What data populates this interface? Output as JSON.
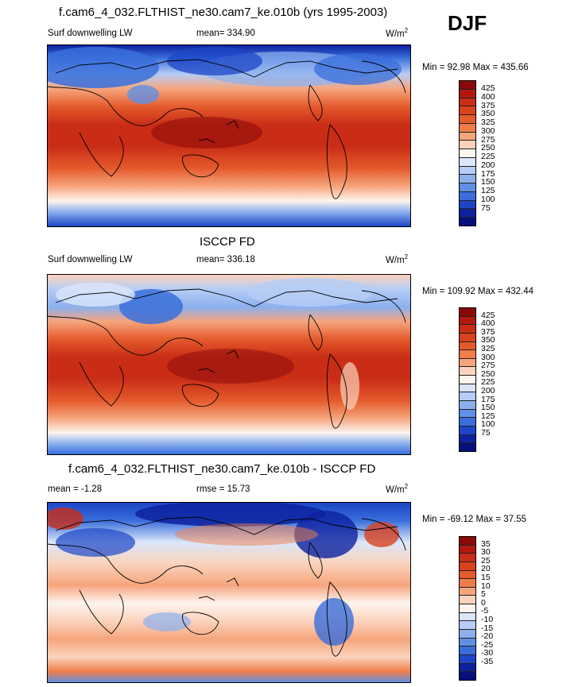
{
  "season": "DJF",
  "panels": [
    {
      "title": "f.cam6_4_032.FLTHIST_ne30.cam7_ke.010b (yrs 1995-2003)",
      "left_label": "Surf downwelling LW",
      "mean_label": "mean= 334.90",
      "unit_label": "W/m",
      "unit_sup": "2",
      "minmax": "Min =  92.98 Max = 435.66",
      "colorbar": {
        "labels": [
          "425",
          "400",
          "375",
          "350",
          "325",
          "300",
          "275",
          "250",
          "225",
          "200",
          "175",
          "150",
          "125",
          "100",
          "75"
        ],
        "colors": [
          "#8a0a0a",
          "#b2180f",
          "#c92d16",
          "#d8421f",
          "#e45a2c",
          "#ef7d49",
          "#f6a57d",
          "#fbd3bc",
          "#fdf4ee",
          "#dbe6fa",
          "#b6cdf5",
          "#8cb0ee",
          "#6090e4",
          "#3a6edb",
          "#1c46c6",
          "#0d22a0",
          "#05107c"
        ]
      }
    },
    {
      "title": "ISCCP FD",
      "left_label": "Surf downwelling LW",
      "mean_label": "mean= 336.18",
      "unit_label": "W/m",
      "unit_sup": "2",
      "minmax": "Min = 109.92 Max = 432.44",
      "colorbar": {
        "labels": [
          "425",
          "400",
          "375",
          "350",
          "325",
          "300",
          "275",
          "250",
          "225",
          "200",
          "175",
          "150",
          "125",
          "100",
          "75"
        ],
        "colors": [
          "#8a0a0a",
          "#b2180f",
          "#c92d16",
          "#d8421f",
          "#e45a2c",
          "#ef7d49",
          "#f6a57d",
          "#fbd3bc",
          "#fdf4ee",
          "#dbe6fa",
          "#b6cdf5",
          "#8cb0ee",
          "#6090e4",
          "#3a6edb",
          "#1c46c6",
          "#0d22a0",
          "#05107c"
        ]
      }
    },
    {
      "title": "f.cam6_4_032.FLTHIST_ne30.cam7_ke.010b - ISCCP FD",
      "left_label": "mean =  -1.28",
      "mean_label": "rmse =  15.73",
      "unit_label": "W/m",
      "unit_sup": "2",
      "minmax": "Min = -69.12 Max =  37.55",
      "colorbar": {
        "labels": [
          "35",
          "30",
          "25",
          "20",
          "15",
          "10",
          "5",
          "0",
          "-5",
          "-10",
          "-15",
          "-20",
          "-25",
          "-30",
          "-35"
        ],
        "colors": [
          "#8a0a0a",
          "#b2180f",
          "#c92d16",
          "#d8421f",
          "#e45a2c",
          "#ef7d49",
          "#f6a57d",
          "#fbd3bc",
          "#fdf4ee",
          "#dbe6fa",
          "#b6cdf5",
          "#8cb0ee",
          "#6090e4",
          "#3a6edb",
          "#1c46c6",
          "#0d22a0",
          "#05107c"
        ]
      }
    }
  ],
  "chart_data": [
    {
      "type": "heatmap",
      "title": "f.cam6_4_032.FLTHIST_ne30.cam7_ke.010b (yrs 1995-2003)",
      "variable": "Surf downwelling LW",
      "units": "W/m2",
      "season": "DJF",
      "mean": 334.9,
      "min": 92.98,
      "max": 435.66,
      "levels": [
        75,
        100,
        125,
        150,
        175,
        200,
        225,
        250,
        275,
        300,
        325,
        350,
        375,
        400,
        425
      ]
    },
    {
      "type": "heatmap",
      "title": "ISCCP FD",
      "variable": "Surf downwelling LW",
      "units": "W/m2",
      "mean": 336.18,
      "min": 109.92,
      "max": 432.44,
      "levels": [
        75,
        100,
        125,
        150,
        175,
        200,
        225,
        250,
        275,
        300,
        325,
        350,
        375,
        400,
        425
      ]
    },
    {
      "type": "heatmap",
      "title": "f.cam6_4_032.FLTHIST_ne30.cam7_ke.010b - ISCCP FD",
      "units": "W/m2",
      "mean": -1.28,
      "rmse": 15.73,
      "min": -69.12,
      "max": 37.55,
      "levels": [
        -35,
        -30,
        -25,
        -20,
        -15,
        -10,
        -5,
        0,
        5,
        10,
        15,
        20,
        25,
        30,
        35
      ]
    }
  ]
}
